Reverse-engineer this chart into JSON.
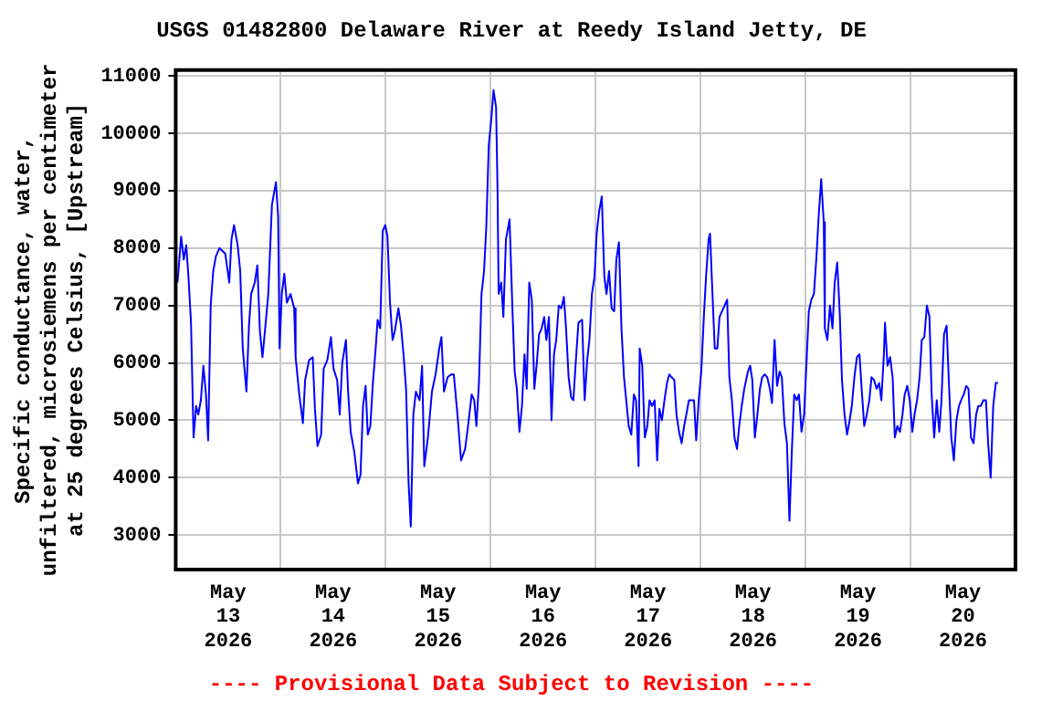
{
  "chart_data": {
    "type": "line",
    "title": "USGS 01482800 Delaware River at Reedy Island Jetty, DE",
    "ylabel": "Specific conductance, water,\nunfiltered, microsiemens per centimeter\nat 25 degrees Celsius, [Upstream]",
    "annotations": [
      "---- Provisional Data Subject to Revision ----"
    ],
    "x": [
      "2026-05-13T00:25",
      "2026-05-13T01:15",
      "2026-05-13T01:50",
      "2026-05-13T02:25",
      "2026-05-13T02:55",
      "2026-05-13T03:30",
      "2026-05-13T04:05",
      "2026-05-13T04:40",
      "2026-05-13T05:10",
      "2026-05-13T05:45",
      "2026-05-13T06:20",
      "2026-05-13T06:55",
      "2026-05-13T07:25",
      "2026-05-13T08:00",
      "2026-05-13T08:35",
      "2026-05-13T09:10",
      "2026-05-13T10:00",
      "2026-05-13T11:20",
      "2026-05-13T12:15",
      "2026-05-13T12:45",
      "2026-05-13T13:20",
      "2026-05-13T14:10",
      "2026-05-13T14:45",
      "2026-05-13T15:20",
      "2026-05-13T16:10",
      "2026-05-13T16:45",
      "2026-05-13T17:15",
      "2026-05-13T18:05",
      "2026-05-13T18:40",
      "2026-05-13T19:15",
      "2026-05-13T19:50",
      "2026-05-13T20:20",
      "2026-05-13T21:10",
      "2026-05-13T22:00",
      "2026-05-13T22:55",
      "2026-05-13T23:25",
      "2026-05-13T23:45",
      "2026-05-14T00:15",
      "2026-05-14T00:50",
      "2026-05-14T01:25",
      "2026-05-14T02:15",
      "2026-05-14T03:05",
      "2026-05-14T03:25",
      "2026-05-14T04:15",
      "2026-05-14T05:05",
      "2026-05-14T05:35",
      "2026-05-14T06:30",
      "2026-05-14T07:20",
      "2026-05-14T07:50",
      "2026-05-14T08:25",
      "2026-05-14T09:15",
      "2026-05-14T09:50",
      "2026-05-14T10:40",
      "2026-05-14T11:30",
      "2026-05-14T12:05",
      "2026-05-14T12:55",
      "2026-05-14T13:30",
      "2026-05-14T14:05",
      "2026-05-14T14:55",
      "2026-05-14T15:25",
      "2026-05-14T16:00",
      "2026-05-14T16:50",
      "2026-05-14T17:40",
      "2026-05-14T18:15",
      "2026-05-14T18:50",
      "2026-05-14T19:25",
      "2026-05-14T19:55",
      "2026-05-14T20:30",
      "2026-05-14T21:05",
      "2026-05-14T21:40",
      "2026-05-14T22:10",
      "2026-05-14T22:45",
      "2026-05-14T23:20",
      "2026-05-14T23:55",
      "2026-05-15T00:25",
      "2026-05-15T01:00",
      "2026-05-15T01:35",
      "2026-05-15T02:05",
      "2026-05-15T02:55",
      "2026-05-15T03:30",
      "2026-05-15T04:05",
      "2026-05-15T04:40",
      "2026-05-15T05:15",
      "2026-05-15T05:45",
      "2026-05-15T06:20",
      "2026-05-15T06:55",
      "2026-05-15T07:45",
      "2026-05-15T08:20",
      "2026-05-15T08:50",
      "2026-05-15T09:40",
      "2026-05-15T10:35",
      "2026-05-15T11:25",
      "2026-05-15T12:15",
      "2026-05-15T12:45",
      "2026-05-15T13:20",
      "2026-05-15T14:10",
      "2026-05-15T15:00",
      "2026-05-15T15:35",
      "2026-05-15T16:25",
      "2026-05-15T17:15",
      "2026-05-15T18:10",
      "2026-05-15T18:50",
      "2026-05-15T19:40",
      "2026-05-15T20:15",
      "2026-05-15T20:45",
      "2026-05-15T21:20",
      "2026-05-15T21:55",
      "2026-05-15T22:30",
      "2026-05-15T23:00",
      "2026-05-15T23:35",
      "2026-05-16T00:10",
      "2026-05-16T00:40",
      "2026-05-16T01:15",
      "2026-05-16T01:35",
      "2026-05-16T01:50",
      "2026-05-16T02:25",
      "2026-05-16T02:55",
      "2026-05-16T03:30",
      "2026-05-16T04:20",
      "2026-05-16T04:55",
      "2026-05-16T05:30",
      "2026-05-16T06:00",
      "2026-05-16T06:35",
      "2026-05-16T07:10",
      "2026-05-16T07:45",
      "2026-05-16T08:15",
      "2026-05-16T08:50",
      "2026-05-16T09:25",
      "2026-05-16T10:00",
      "2026-05-16T10:30",
      "2026-05-16T11:05",
      "2026-05-16T11:40",
      "2026-05-16T12:15",
      "2026-05-16T12:45",
      "2026-05-16T13:20",
      "2026-05-16T13:55",
      "2026-05-16T14:30",
      "2026-05-16T15:00",
      "2026-05-16T15:35",
      "2026-05-16T16:10",
      "2026-05-16T16:45",
      "2026-05-16T17:15",
      "2026-05-16T17:50",
      "2026-05-16T18:25",
      "2026-05-16T18:55",
      "2026-05-16T19:30",
      "2026-05-16T20:05",
      "2026-05-16T20:55",
      "2026-05-16T21:30",
      "2026-05-16T22:05",
      "2026-05-16T22:35",
      "2026-05-16T23:10",
      "2026-05-16T23:45",
      "2026-05-17T00:15",
      "2026-05-17T00:50",
      "2026-05-17T01:25",
      "2026-05-17T02:00",
      "2026-05-17T02:30",
      "2026-05-17T03:05",
      "2026-05-17T03:40",
      "2026-05-17T04:15",
      "2026-05-17T04:45",
      "2026-05-17T05:20",
      "2026-05-17T05:55",
      "2026-05-17T06:30",
      "2026-05-17T07:00",
      "2026-05-17T07:35",
      "2026-05-17T08:10",
      "2026-05-17T08:45",
      "2026-05-17T09:15",
      "2026-05-17T09:50",
      "2026-05-17T10:05",
      "2026-05-17T10:40",
      "2026-05-17T11:15",
      "2026-05-17T11:50",
      "2026-05-17T12:20",
      "2026-05-17T12:55",
      "2026-05-17T13:30",
      "2026-05-17T14:05",
      "2026-05-17T14:35",
      "2026-05-17T15:10",
      "2026-05-17T15:45",
      "2026-05-17T16:20",
      "2026-05-17T16:50",
      "2026-05-17T17:25",
      "2026-05-17T18:00",
      "2026-05-17T18:30",
      "2026-05-17T19:05",
      "2026-05-17T19:40",
      "2026-05-17T20:15",
      "2026-05-17T20:45",
      "2026-05-17T21:20",
      "2026-05-17T22:30",
      "2026-05-17T23:00",
      "2026-05-17T23:35",
      "2026-05-18T00:10",
      "2026-05-18T00:45",
      "2026-05-18T01:15",
      "2026-05-18T01:50",
      "2026-05-18T02:10",
      "2026-05-18T02:40",
      "2026-05-18T03:15",
      "2026-05-18T03:50",
      "2026-05-18T04:20",
      "2026-05-18T04:55",
      "2026-05-18T05:30",
      "2026-05-18T06:05",
      "2026-05-18T06:35",
      "2026-05-18T07:10",
      "2026-05-18T07:45",
      "2026-05-18T08:20",
      "2026-05-18T08:50",
      "2026-05-18T09:25",
      "2026-05-18T10:00",
      "2026-05-18T10:50",
      "2026-05-18T11:20",
      "2026-05-18T11:50",
      "2026-05-18T12:25",
      "2026-05-18T13:00",
      "2026-05-18T13:35",
      "2026-05-18T14:05",
      "2026-05-18T14:40",
      "2026-05-18T15:15",
      "2026-05-18T15:50",
      "2026-05-18T16:20",
      "2026-05-18T16:55",
      "2026-05-18T17:30",
      "2026-05-18T18:05",
      "2026-05-18T18:35",
      "2026-05-18T19:10",
      "2026-05-18T19:45",
      "2026-05-18T20:20",
      "2026-05-18T20:50",
      "2026-05-18T21:25",
      "2026-05-18T22:00",
      "2026-05-18T22:30",
      "2026-05-18T23:05",
      "2026-05-18T23:40",
      "2026-05-19T00:15",
      "2026-05-19T00:45",
      "2026-05-19T01:20",
      "2026-05-19T01:55",
      "2026-05-19T02:30",
      "2026-05-19T03:00",
      "2026-05-19T03:35",
      "2026-05-19T04:10",
      "2026-05-19T04:25",
      "2026-05-19T05:00",
      "2026-05-19T05:35",
      "2026-05-19T06:10",
      "2026-05-19T06:40",
      "2026-05-19T07:15",
      "2026-05-19T07:50",
      "2026-05-19T08:20",
      "2026-05-19T08:55",
      "2026-05-19T09:30",
      "2026-05-19T10:05",
      "2026-05-19T10:35",
      "2026-05-19T11:10",
      "2026-05-19T11:45",
      "2026-05-19T12:20",
      "2026-05-19T12:50",
      "2026-05-19T13:25",
      "2026-05-19T14:00",
      "2026-05-19T14:35",
      "2026-05-19T15:05",
      "2026-05-19T15:40",
      "2026-05-19T16:15",
      "2026-05-19T16:50",
      "2026-05-19T17:20",
      "2026-05-19T17:55",
      "2026-05-19T18:10",
      "2026-05-19T18:45",
      "2026-05-19T19:20",
      "2026-05-19T19:55",
      "2026-05-19T20:25",
      "2026-05-19T21:00",
      "2026-05-19T21:35",
      "2026-05-19T22:10",
      "2026-05-19T22:40",
      "2026-05-19T23:15",
      "2026-05-19T23:50",
      "2026-05-20T00:25",
      "2026-05-20T00:55",
      "2026-05-20T01:30",
      "2026-05-20T02:05",
      "2026-05-20T02:35",
      "2026-05-20T03:10",
      "2026-05-20T03:45",
      "2026-05-20T04:20",
      "2026-05-20T04:50",
      "2026-05-20T05:25",
      "2026-05-20T06:00",
      "2026-05-20T06:35",
      "2026-05-20T07:05",
      "2026-05-20T07:40",
      "2026-05-20T08:15",
      "2026-05-20T08:50",
      "2026-05-20T09:20",
      "2026-05-20T09:55",
      "2026-05-20T10:30",
      "2026-05-20T11:05",
      "2026-05-20T11:35",
      "2026-05-20T12:10",
      "2026-05-20T12:45",
      "2026-05-20T13:15",
      "2026-05-20T13:50",
      "2026-05-20T14:25",
      "2026-05-20T15:00",
      "2026-05-20T15:30",
      "2026-05-20T16:05",
      "2026-05-20T16:40",
      "2026-05-20T17:15",
      "2026-05-20T17:45",
      "2026-05-20T18:20",
      "2026-05-20T18:55",
      "2026-05-20T19:30",
      "2026-05-20T20:00"
    ],
    "series": [
      {
        "color": "#0000ff",
        "values": [
          7400,
          8200,
          7800,
          8050,
          7500,
          6700,
          4700,
          5250,
          5100,
          5350,
          5950,
          5450,
          4650,
          7000,
          7600,
          7850,
          8000,
          7900,
          7400,
          8150,
          8400,
          8050,
          7600,
          6250,
          5500,
          6650,
          7200,
          7400,
          7700,
          6550,
          6100,
          6500,
          7200,
          8750,
          9150,
          8550,
          6250,
          7200,
          7550,
          7050,
          7200,
          6950,
          6100,
          5450,
          4950,
          5700,
          6050,
          6100,
          5200,
          4550,
          4750,
          5900,
          6050,
          6450,
          5900,
          5700,
          5100,
          6000,
          6400,
          5500,
          4800,
          4450,
          3900,
          4050,
          5250,
          5600,
          4750,
          4900,
          5650,
          6200,
          6750,
          6600,
          8300,
          8400,
          8200,
          7050,
          6400,
          6550,
          6950,
          6650,
          6150,
          5550,
          3900,
          3150,
          5100,
          5500,
          5350,
          5950,
          4200,
          4700,
          5500,
          5800,
          6250,
          6450,
          5500,
          5750,
          5800,
          5800,
          5100,
          4300,
          4500,
          4900,
          5450,
          5350,
          4900,
          5650,
          7200,
          7600,
          8350,
          9800,
          10250,
          10750,
          10450,
          9000,
          7200,
          7400,
          6800,
          8150,
          8500,
          7100,
          5850,
          5550,
          4800,
          5250,
          6150,
          5550,
          7400,
          7100,
          5550,
          5950,
          6500,
          6600,
          6800,
          6400,
          6800,
          5000,
          6150,
          6400,
          7000,
          6950,
          7150,
          6600,
          5750,
          5400,
          5350,
          6050,
          6700,
          6750,
          5350,
          6050,
          6400,
          7200,
          7500,
          8250,
          8650,
          8900,
          7500,
          7200,
          7600,
          6950,
          6900,
          7800,
          8100,
          6600,
          5750,
          5350,
          4900,
          4750,
          5450,
          5350,
          4200,
          6250,
          5950,
          4700,
          4900,
          5350,
          5250,
          5350,
          4300,
          5200,
          5000,
          5350,
          5650,
          5800,
          5750,
          5700,
          5100,
          4800,
          4600,
          4900,
          5100,
          5350,
          5350,
          4650,
          5350,
          5850,
          6800,
          7500,
          8150,
          8250,
          7300,
          6250,
          6250,
          6800,
          6900,
          7000,
          7100,
          5750,
          5350,
          4700,
          4500,
          4900,
          5250,
          5550,
          5850,
          5950,
          5700,
          4700,
          5100,
          5550,
          5750,
          5800,
          5750,
          5550,
          5300,
          6400,
          5600,
          5850,
          5750,
          4950,
          4600,
          3250,
          4400,
          5450,
          5350,
          5450,
          4800,
          5100,
          6050,
          6900,
          7100,
          7200,
          7850,
          8550,
          9200,
          8450,
          6600,
          6400,
          7000,
          6600,
          7400,
          7750,
          6850,
          5700,
          5100,
          4750,
          5000,
          5250,
          5750,
          6100,
          6150,
          5550,
          4900,
          5100,
          5350,
          5750,
          5700,
          5550,
          5650,
          5350,
          6150,
          6700,
          5950,
          6100,
          5750,
          4700,
          4900,
          4800,
          5100,
          5450,
          5600,
          5350,
          4800,
          5100,
          5350,
          5750,
          6400,
          6450,
          7000,
          6800,
          5450,
          4700,
          5350,
          4800,
          5350,
          6500,
          6650,
          5550,
          4700,
          4300,
          5000,
          5250,
          5350,
          5450,
          5600,
          5550,
          4700,
          4600,
          5100,
          5250,
          5250,
          5350,
          5350,
          4600,
          4000,
          5250,
          5650,
          5650
        ]
      }
    ],
    "xlim": [
      "2026-05-13T00:00",
      "2026-05-21T00:00"
    ],
    "xticks": [
      {
        "value": "2026-05-13T12:00",
        "label": "May\n13\n2026"
      },
      {
        "value": "2026-05-14T00:00",
        "label": null
      },
      {
        "value": "2026-05-14T12:00",
        "label": "May\n14\n2026"
      },
      {
        "value": "2026-05-15T00:00",
        "label": null
      },
      {
        "value": "2026-05-15T12:00",
        "label": "May\n15\n2026"
      },
      {
        "value": "2026-05-16T00:00",
        "label": null
      },
      {
        "value": "2026-05-16T12:00",
        "label": "May\n16\n2026"
      },
      {
        "value": "2026-05-17T00:00",
        "label": null
      },
      {
        "value": "2026-05-17T12:00",
        "label": "May\n17\n2026"
      },
      {
        "value": "2026-05-18T00:00",
        "label": null
      },
      {
        "value": "2026-05-18T12:00",
        "label": "May\n18\n2026"
      },
      {
        "value": "2026-05-19T00:00",
        "label": null
      },
      {
        "value": "2026-05-19T12:00",
        "label": "May\n19\n2026"
      },
      {
        "value": "2026-05-20T00:00",
        "label": null
      },
      {
        "value": "2026-05-20T12:00",
        "label": "May\n20\n2026"
      }
    ],
    "ylim": [
      2400,
      11100
    ],
    "yticks": [
      3000,
      4000,
      5000,
      6000,
      7000,
      8000,
      9000,
      10000,
      11000
    ],
    "grid": true,
    "legend": false,
    "marker": "none",
    "line_style": "solid"
  }
}
